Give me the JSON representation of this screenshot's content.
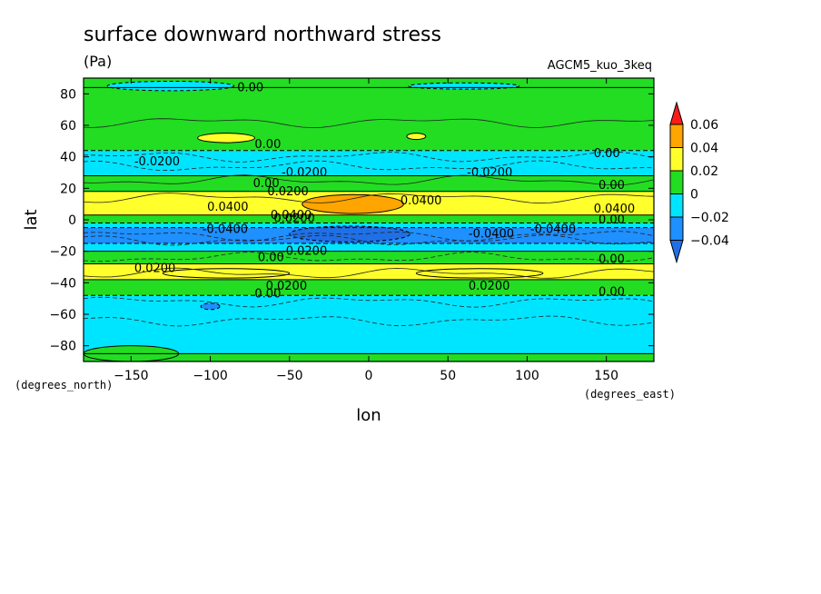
{
  "figure": {
    "title": "surface downward northward stress",
    "units": "(Pa)",
    "dataset": "AGCM5_kuo_3keq",
    "lat_unit": "(degrees_north)",
    "lon_unit": "(degrees_east)"
  },
  "chart_data": {
    "type": "heatmap",
    "title": "surface downward northward stress",
    "xlabel": "lon",
    "ylabel": "lat",
    "xlim": [
      -180,
      180
    ],
    "ylim": [
      -90,
      90
    ],
    "x_ticks": [
      -150,
      -100,
      -50,
      0,
      50,
      100,
      150
    ],
    "y_ticks": [
      80,
      60,
      40,
      20,
      0,
      -20,
      -40,
      -60,
      -80
    ],
    "colorbar": {
      "levels": [
        -0.04,
        -0.02,
        0,
        0.02,
        0.04,
        0.06
      ],
      "tick_labels": [
        "0.06",
        "0.04",
        "0.02",
        "0",
        "-0.02",
        "-0.04"
      ],
      "colors": {
        "below": "#1f70e6",
        "-0.04_-0.02": "#1e90ff",
        "-0.02_0": "#00e5ff",
        "0_0.02": "#22dd22",
        "0.02_0.04": "#ffff2b",
        "0.04_0.06": "#ffa500",
        "above": "#ff1a1a"
      }
    },
    "zonal_bands": [
      {
        "lat_from": 90,
        "lat_to": 84,
        "value": 0.01
      },
      {
        "lat_from": 84,
        "lat_to": 44,
        "value": 0.01
      },
      {
        "lat_from": 44,
        "lat_to": 28,
        "value": -0.01
      },
      {
        "lat_from": 28,
        "lat_to": 18,
        "value": 0.01
      },
      {
        "lat_from": 18,
        "lat_to": 3,
        "value": 0.03
      },
      {
        "lat_from": 3,
        "lat_to": -2,
        "value": 0.01
      },
      {
        "lat_from": -2,
        "lat_to": -5,
        "value": -0.01
      },
      {
        "lat_from": -5,
        "lat_to": -15,
        "value": -0.03
      },
      {
        "lat_from": -15,
        "lat_to": -20,
        "value": -0.01
      },
      {
        "lat_from": -20,
        "lat_to": -28,
        "value": 0.01
      },
      {
        "lat_from": -28,
        "lat_to": -38,
        "value": 0.03
      },
      {
        "lat_from": -38,
        "lat_to": -48,
        "value": 0.01
      },
      {
        "lat_from": -48,
        "lat_to": -85,
        "value": -0.01
      },
      {
        "lat_from": -85,
        "lat_to": -90,
        "value": 0.01
      }
    ],
    "patches": [
      {
        "lon": -10,
        "lat": 10,
        "lon_half": 32,
        "lat_half": 6,
        "value": 0.05
      },
      {
        "lon": -12,
        "lat": -9,
        "lon_half": 38,
        "lat_half": 5,
        "value": -0.05
      },
      {
        "lon": -90,
        "lat": 52,
        "lon_half": 18,
        "lat_half": 3,
        "value": 0.03
      },
      {
        "lon": 30,
        "lat": 53,
        "lon_half": 6,
        "lat_half": 2,
        "value": 0.03
      },
      {
        "lon": -125,
        "lat": 85,
        "lon_half": 40,
        "lat_half": 3,
        "value": -0.01
      },
      {
        "lon": 60,
        "lat": 85,
        "lon_half": 35,
        "lat_half": 2,
        "value": -0.01
      },
      {
        "lon": -90,
        "lat": -34,
        "lon_half": 40,
        "lat_half": 3,
        "value": 0.03
      },
      {
        "lon": 70,
        "lat": -34,
        "lon_half": 40,
        "lat_half": 3,
        "value": 0.03
      },
      {
        "lon": -100,
        "lat": -55,
        "lon_half": 6,
        "lat_half": 2,
        "value": -0.03
      },
      {
        "lon": -150,
        "lat": -85,
        "lon_half": 30,
        "lat_half": 5,
        "value": 0.01
      }
    ],
    "contour_labels": [
      {
        "text": "0.00",
        "lon": -83,
        "lat": 84
      },
      {
        "text": "0.00",
        "lon": -72,
        "lat": 48
      },
      {
        "text": "-0.0200",
        "lon": -148,
        "lat": 37
      },
      {
        "text": "-0.0200",
        "lon": -55,
        "lat": 30
      },
      {
        "text": "0.00",
        "lon": -73,
        "lat": 23
      },
      {
        "text": "0.0200",
        "lon": -64,
        "lat": 18
      },
      {
        "text": "0.0400",
        "lon": -102,
        "lat": 8
      },
      {
        "text": "0.0400",
        "lon": 20,
        "lat": 12
      },
      {
        "text": "0.0400",
        "lon": 142,
        "lat": 7
      },
      {
        "text": "-0.0400",
        "lon": -105,
        "lat": -6
      },
      {
        "text": "-0.0400",
        "lon": 63,
        "lat": -9
      },
      {
        "text": "-0.0400",
        "lon": 102,
        "lat": -6
      },
      {
        "text": "-0.0200",
        "lon": -55,
        "lat": -20
      },
      {
        "text": "0.00",
        "lon": -70,
        "lat": -24
      },
      {
        "text": "0.0200",
        "lon": -148,
        "lat": -31
      },
      {
        "text": "0.0200",
        "lon": -65,
        "lat": -42
      },
      {
        "text": "0.00",
        "lon": -72,
        "lat": -47
      },
      {
        "text": "-0.0200",
        "lon": 62,
        "lat": 30
      },
      {
        "text": "0.00",
        "lon": 142,
        "lat": 42
      },
      {
        "text": "0.00",
        "lon": 145,
        "lat": 22
      },
      {
        "text": "0.00",
        "lon": 145,
        "lat": 0
      },
      {
        "text": "0.00",
        "lon": 145,
        "lat": -25
      },
      {
        "text": "0.0200",
        "lon": 63,
        "lat": -42
      },
      {
        "text": "0.00",
        "lon": 145,
        "lat": -46
      },
      {
        "text": "0.0200",
        "lon": -60,
        "lat": 1
      },
      {
        "text": "0.0400",
        "lon": -62,
        "lat": 3
      }
    ]
  }
}
